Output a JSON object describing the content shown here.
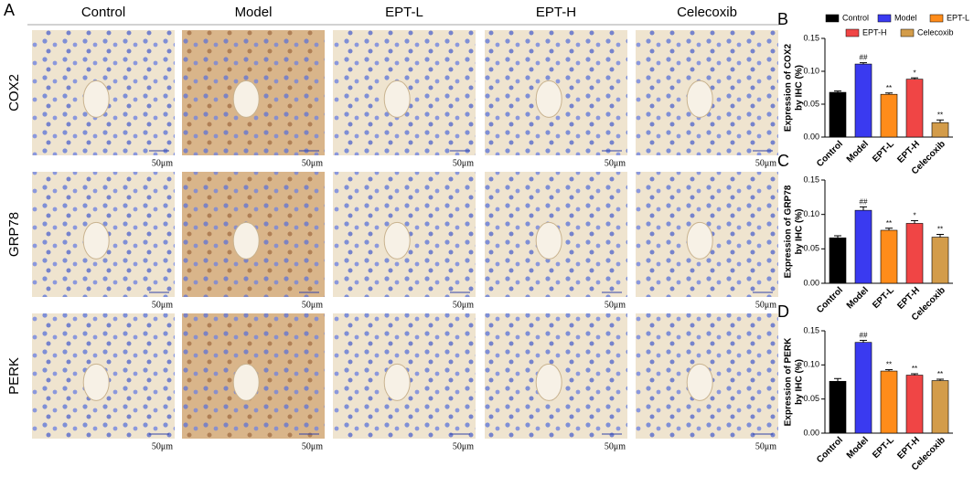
{
  "panel_a": {
    "panel_label": "A",
    "columns": [
      "Control",
      "Model",
      "EPT-L",
      "EPT-H",
      "Celecoxib"
    ],
    "rows": [
      "COX2",
      "GRP78",
      "PERK"
    ],
    "scale_bar": "50μm"
  },
  "chart_data": [
    {
      "type": "bar",
      "panel_label": "B",
      "y_label": [
        "Expression of COX2",
        "by IHC (%)"
      ],
      "categories": [
        "Control",
        "Model",
        "EPT-L",
        "EPT-H",
        "Celecoxib"
      ],
      "colors": [
        "#000000",
        "#3a3af0",
        "#ff8c1a",
        "#f04545",
        "#d39c4a"
      ],
      "values": [
        0.068,
        0.111,
        0.065,
        0.088,
        0.022
      ],
      "errors": [
        0.002,
        0.002,
        0.002,
        0.002,
        0.004
      ],
      "annotations": [
        null,
        "##",
        "**",
        "*",
        "**"
      ],
      "ylim": [
        0,
        0.15
      ],
      "yticks": [
        {
          "value": 0,
          "label": "0.00"
        },
        0.05,
        {
          "value": 0.1,
          "label": "0.10"
        },
        0.15
      ],
      "legend": true
    },
    {
      "type": "bar",
      "panel_label": "C",
      "y_label": [
        "Expression of GRP78",
        "by IHC (%)"
      ],
      "categories": [
        "Control",
        "Model",
        "EPT-L",
        "EPT-H",
        "Celecoxib"
      ],
      "colors": [
        "#000000",
        "#3a3af0",
        "#ff8c1a",
        "#f04545",
        "#d39c4a"
      ],
      "values": [
        0.066,
        0.106,
        0.077,
        0.087,
        0.067
      ],
      "errors": [
        0.003,
        0.005,
        0.003,
        0.004,
        0.004
      ],
      "annotations": [
        null,
        "##",
        "**",
        "*",
        "**"
      ],
      "ylim": [
        0,
        0.15
      ],
      "yticks": [
        {
          "value": 0,
          "label": "0.00"
        },
        0.05,
        {
          "value": 0.1,
          "label": "0.10"
        },
        0.15
      ],
      "legend": false
    },
    {
      "type": "bar",
      "panel_label": "D",
      "y_label": [
        "Expression of PERK",
        "by IHC (%)"
      ],
      "categories": [
        "Control",
        "Model",
        "EPT-L",
        "EPT-H",
        "Celecoxib"
      ],
      "colors": [
        "#000000",
        "#3a3af0",
        "#ff8c1a",
        "#f04545",
        "#d39c4a"
      ],
      "values": [
        0.076,
        0.133,
        0.091,
        0.085,
        0.077
      ],
      "errors": [
        0.004,
        0.003,
        0.002,
        0.002,
        0.002
      ],
      "annotations": [
        null,
        "##",
        "**",
        "**",
        "**"
      ],
      "ylim": [
        0,
        0.15
      ],
      "yticks": [
        {
          "value": 0,
          "label": "0.00"
        },
        0.05,
        {
          "value": 0.1,
          "label": "0.10"
        },
        0.15
      ],
      "legend": false
    }
  ]
}
